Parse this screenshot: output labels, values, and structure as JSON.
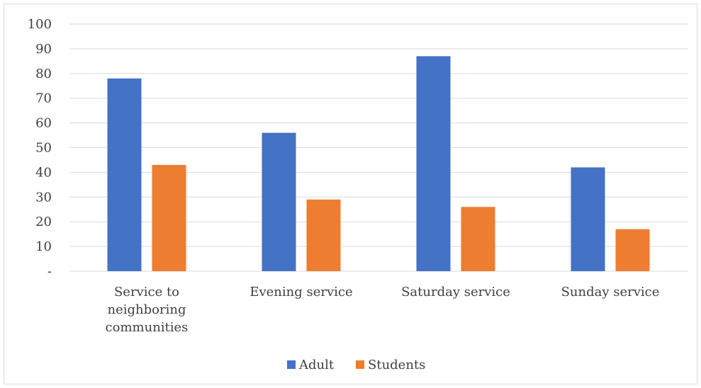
{
  "chart_data": {
    "type": "bar",
    "categories": [
      [
        "Service to",
        "neighboring",
        "communities"
      ],
      [
        "Evening service"
      ],
      [
        "Saturday service"
      ],
      [
        "Sunday service"
      ]
    ],
    "series": [
      {
        "name": "Adult",
        "color": "#4472c4",
        "values": [
          78,
          56,
          87,
          42
        ]
      },
      {
        "name": "Students",
        "color": "#ed7d31",
        "values": [
          43,
          29,
          26,
          17
        ]
      }
    ],
    "yticks": [
      "-",
      "10",
      "20",
      "30",
      "40",
      "50",
      "60",
      "70",
      "80",
      "90",
      "100"
    ],
    "ylim": [
      0,
      100
    ],
    "grid": true,
    "legend_position": "bottom",
    "gridline_color": "#d9d9d9"
  }
}
